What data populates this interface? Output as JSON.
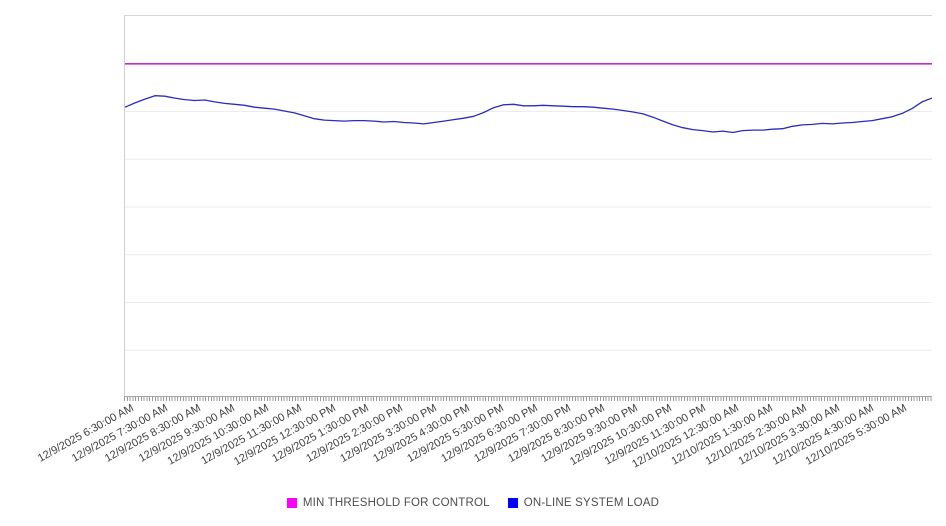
{
  "legend": {
    "items": [
      {
        "label": "MIN THRESHOLD FOR CONTROL",
        "swatch_color": "#FF00FF"
      },
      {
        "label": "ON-LINE SYSTEM LOAD",
        "swatch_color": "#0000FF"
      }
    ]
  },
  "chart_data": {
    "type": "line",
    "title": "",
    "xlabel": "",
    "ylabel": "",
    "x_tick_labels": [
      "12/9/2025 6:30:00 AM",
      "12/9/2025 7:30:00 AM",
      "12/9/2025 8:30:00 AM",
      "12/9/2025 9:30:00 AM",
      "12/9/2025 10:30:00 AM",
      "12/9/2025 11:30:00 AM",
      "12/9/2025 12:30:00 PM",
      "12/9/2025 1:30:00 PM",
      "12/9/2025 2:30:00 PM",
      "12/9/2025 3:30:00 PM",
      "12/9/2025 4:30:00 PM",
      "12/9/2025 5:30:00 PM",
      "12/9/2025 6:30:00 PM",
      "12/9/2025 7:30:00 PM",
      "12/9/2025 8:30:00 PM",
      "12/9/2025 9:30:00 PM",
      "12/9/2025 10:30:00 PM",
      "12/9/2025 11:30:00 PM",
      "12/10/2025 12:30:00 AM",
      "12/10/2025 1:30:00 AM",
      "12/10/2025 2:30:00 AM",
      "12/10/2025 3:30:00 AM",
      "12/10/2025 4:30:00 AM",
      "12/10/2025 5:30:00 AM"
    ],
    "x_range_hours": [
      0,
      24
    ],
    "x_major_tick_interval_hours": 1,
    "x_minor_tick_interval_minutes": 5,
    "ylim": [
      0,
      8
    ],
    "y_divisions": 8,
    "y_tick_labels_visible": false,
    "grid": true,
    "legend_position": "bottom-center",
    "series": [
      {
        "name": "MIN THRESHOLD FOR CONTROL",
        "type": "constant",
        "value": 7.0,
        "color": "#C32BC3"
      },
      {
        "name": "ON-LINE SYSTEM LOAD",
        "type": "line",
        "color": "#2B2BC0",
        "values": [
          6.09,
          6.18,
          6.26,
          6.33,
          6.32,
          6.28,
          6.25,
          6.23,
          6.24,
          6.2,
          6.17,
          6.15,
          6.13,
          6.09,
          6.07,
          6.05,
          6.01,
          5.97,
          5.91,
          5.85,
          5.82,
          5.81,
          5.8,
          5.81,
          5.81,
          5.8,
          5.78,
          5.79,
          5.77,
          5.76,
          5.74,
          5.77,
          5.8,
          5.83,
          5.86,
          5.9,
          5.98,
          6.08,
          6.14,
          6.15,
          6.12,
          6.12,
          6.13,
          6.12,
          6.11,
          6.1,
          6.1,
          6.09,
          6.07,
          6.05,
          6.02,
          5.99,
          5.95,
          5.88,
          5.8,
          5.72,
          5.66,
          5.62,
          5.6,
          5.57,
          5.59,
          5.56,
          5.6,
          5.61,
          5.61,
          5.63,
          5.64,
          5.69,
          5.72,
          5.73,
          5.75,
          5.74,
          5.76,
          5.77,
          5.79,
          5.81,
          5.85,
          5.89,
          5.96,
          6.06,
          6.2,
          6.28
        ]
      }
    ]
  },
  "style": {
    "grid_color": "#ececec",
    "axis_line_color": "#a6a6a6",
    "tick_color": "#9a9a9a",
    "x_label_color": "#3f3f3f",
    "legend_text_color": "#4d4d4d",
    "background_color": "#ffffff"
  }
}
